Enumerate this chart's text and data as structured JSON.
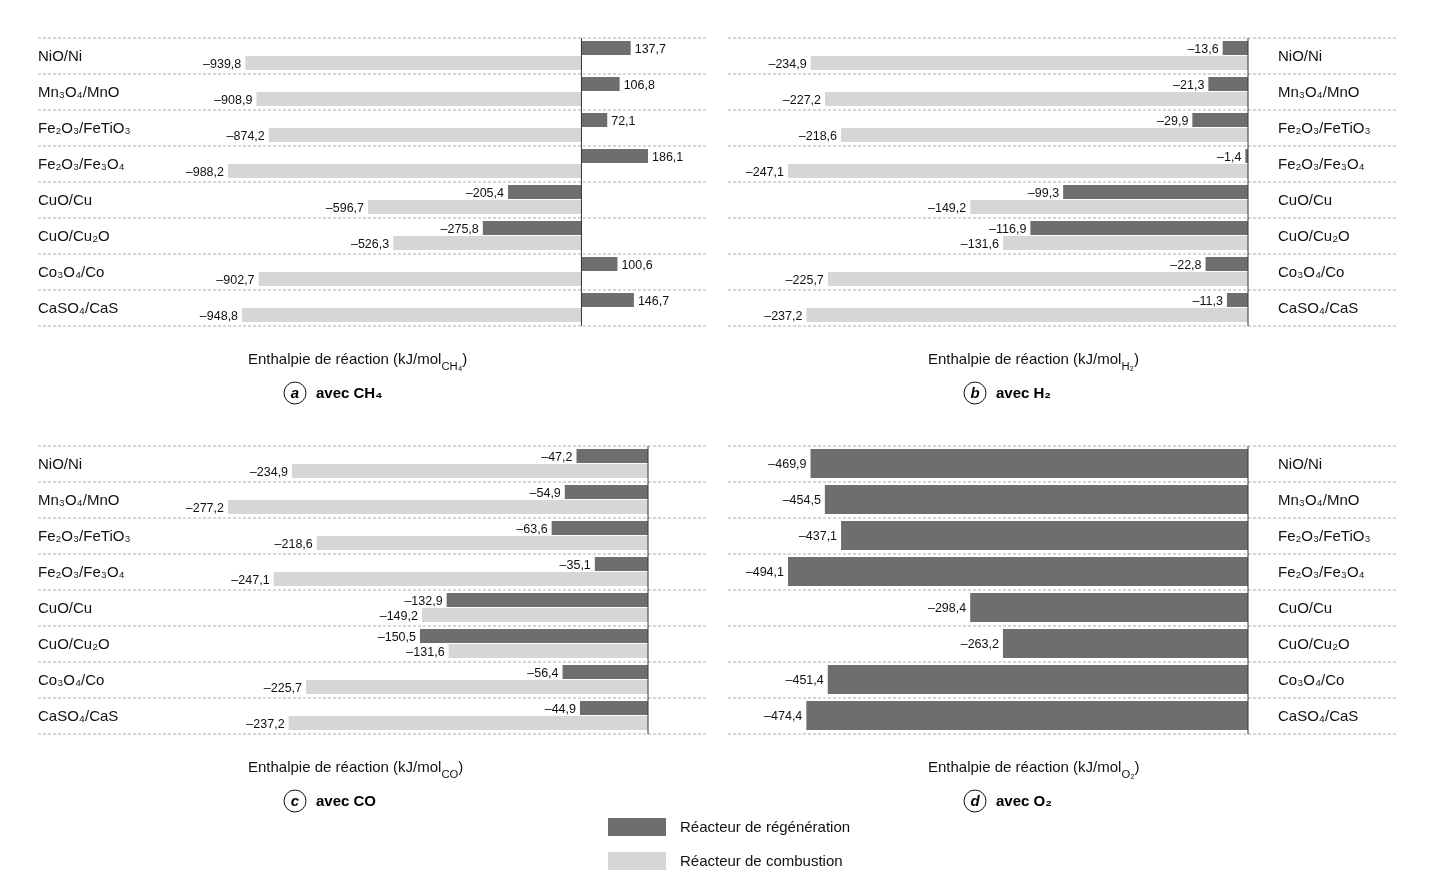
{
  "chart_data": [
    {
      "type": "bar",
      "orientation": "horizontal",
      "title": "avec CH₄",
      "xlabel": "Enthalpie de réaction (kJ/mol$_{CH₄}$)",
      "annotations": [
        "a"
      ],
      "grid": "y",
      "categories": [
        "NiO/Ni",
        "Mn₃O₄/MnO",
        "Fe₂O₃/FeTiO₃",
        "Fe₂O₃/Fe₃O₄",
        "CuO/Cu",
        "CuO/Cu₂O",
        "Co₃O₄/Co",
        "CaSO₄/CaS"
      ],
      "series": [
        {
          "color": "#6e6e6e",
          "values": [
            137.7,
            106.8,
            72.1,
            186.1,
            -205.4,
            -275.8,
            100.6,
            146.7
          ],
          "value_labels": [
            "137,7",
            "106,8",
            "72,1",
            "186,1",
            "–205,4",
            "–275,8",
            "100,6",
            "146,7"
          ]
        },
        {
          "color": "#d6d6d6",
          "values": [
            -939.8,
            -908.9,
            -874.2,
            -988.2,
            -596.7,
            -526.3,
            -902.7,
            -948.8
          ],
          "value_labels": [
            "–939,8",
            "–908,9",
            "–874,2",
            "–988,2",
            "–596,7",
            "–526,3",
            "–902,7",
            "–948,8"
          ]
        }
      ]
    },
    {
      "type": "bar",
      "orientation": "horizontal",
      "title": "avec H₂",
      "xlabel": "Enthalpie de réaction (kJ/mol$_{H₂}$)",
      "annotations": [
        "b"
      ],
      "grid": "y",
      "categories": [
        "NiO/Ni",
        "Mn₃O₄/MnO",
        "Fe₂O₃/FeTiO₃",
        "Fe₂O₃/Fe₃O₄",
        "CuO/Cu",
        "CuO/Cu₂O",
        "Co₃O₄/Co",
        "CaSO₄/CaS"
      ],
      "series": [
        {
          "color": "#6e6e6e",
          "values": [
            -13.6,
            -21.3,
            -29.9,
            -1.4,
            -99.3,
            -116.9,
            -22.8,
            -11.3
          ],
          "value_labels": [
            "–13,6",
            "–21,3",
            "–29,9",
            "–1,4",
            "–99,3",
            "–116,9",
            "–22,8",
            "–11,3"
          ]
        },
        {
          "color": "#d6d6d6",
          "values": [
            -234.9,
            -227.2,
            -218.6,
            -247.1,
            -149.2,
            -131.6,
            -225.7,
            -237.2
          ],
          "value_labels": [
            "–234,9",
            "–227,2",
            "–218,6",
            "–247,1",
            "–149,2",
            "–131,6",
            "–225,7",
            "–237,2"
          ]
        }
      ]
    },
    {
      "type": "bar",
      "orientation": "horizontal",
      "title": "avec CO",
      "xlabel": "Enthalpie de réaction (kJ/mol$_{CO}$)",
      "annotations": [
        "c"
      ],
      "grid": "y",
      "legend": "bottom",
      "categories": [
        "NiO/Ni",
        "Mn₃O₄/MnO",
        "Fe₂O₃/FeTiO₃",
        "Fe₂O₃/Fe₃O₄",
        "CuO/Cu",
        "CuO/Cu₂O",
        "Co₃O₄/Co",
        "CaSO₄/CaS"
      ],
      "series": [
        {
          "name": "Réacteur de régénération",
          "color": "#6e6e6e",
          "values": [
            -47.2,
            -54.9,
            -63.6,
            -35.1,
            -132.9,
            -150.5,
            -56.4,
            -44.9
          ],
          "value_labels": [
            "–47,2",
            "–54,9",
            "–63,6",
            "–35,1",
            "–132,9",
            "–150,5",
            "–56,4",
            "–44,9"
          ]
        },
        {
          "name": "Réacteur de combustion",
          "color": "#d6d6d6",
          "values": [
            -234.9,
            -277.2,
            -218.6,
            -247.1,
            -149.2,
            -131.6,
            -225.7,
            -237.2
          ],
          "value_labels": [
            "–234,9",
            "–277,2",
            "–218,6",
            "–247,1",
            "–149,2",
            "–131,6",
            "–225,7",
            "–237,2"
          ]
        }
      ]
    },
    {
      "type": "bar",
      "orientation": "horizontal",
      "title": "avec O₂",
      "xlabel": "Enthalpie de réaction (kJ/mol$_{O₂}$)",
      "annotations": [
        "d"
      ],
      "grid": "y",
      "categories": [
        "NiO/Ni",
        "Mn₃O₄/MnO",
        "Fe₂O₃/FeTiO₃",
        "Fe₂O₃/Fe₃O₄",
        "CuO/Cu",
        "CuO/Cu₂O",
        "Co₃O₄/Co",
        "CaSO₄/CaS"
      ],
      "series": [
        {
          "color": "#6e6e6e",
          "values": [
            -469.9,
            -454.5,
            -437.1,
            -494.1,
            -298.4,
            -263.2,
            -451.4,
            -474.4
          ],
          "value_labels": [
            "–469,9",
            "–454,5",
            "–437,1",
            "–494,1",
            "–298,4",
            "–263,2",
            "–451,4",
            "–474,4"
          ]
        }
      ]
    }
  ]
}
